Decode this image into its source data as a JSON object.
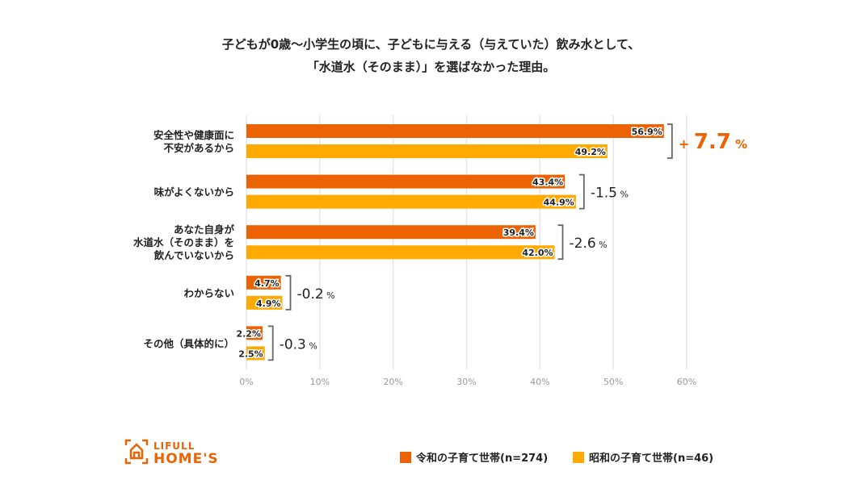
{
  "title_lines": [
    "子どもが0歳〜小学生の頃に、子どもに与える（与えていた）飲み水として、",
    "「水道水（そのまま）」を選ばなかった理由。"
  ],
  "logo": {
    "line1": "LIFULL",
    "line2": "HOME'S"
  },
  "colors": {
    "reiwa": "#EC6303",
    "showa": "#FFAA00",
    "accent": "#EC6303"
  },
  "chart_data": {
    "type": "bar",
    "orientation": "horizontal",
    "categories": [
      [
        "安全性や健康面に",
        "不安があるから"
      ],
      [
        "味がよくないから"
      ],
      [
        "あなた自身が",
        "水道水（そのまま）を",
        "飲んでいないから"
      ],
      [
        "わからない"
      ],
      [
        "その他（具体的に）"
      ]
    ],
    "series": [
      {
        "name": "令和の子育て世帯(n=274)",
        "values": [
          56.9,
          43.4,
          39.4,
          4.7,
          2.2
        ]
      },
      {
        "name": "昭和の子育て世帯(n=46)",
        "values": [
          49.2,
          44.9,
          42.0,
          4.9,
          2.5
        ]
      }
    ],
    "value_labels": [
      [
        "56.9%",
        "43.4%",
        "39.4%",
        "4.7%",
        "2.2%"
      ],
      [
        "49.2%",
        "44.9%",
        "42.0%",
        "4.9%",
        "2.5%"
      ]
    ],
    "differences": [
      {
        "sign": "+",
        "value": "7.7",
        "unit": "%",
        "highlight": true
      },
      {
        "sign": "-",
        "value": "1.5",
        "unit": "%"
      },
      {
        "sign": "-",
        "value": "2.6",
        "unit": "%"
      },
      {
        "sign": "-",
        "value": "0.2",
        "unit": "%"
      },
      {
        "sign": "-",
        "value": "0.3",
        "unit": "%"
      }
    ],
    "xlim": [
      0,
      60
    ],
    "xticks": [
      "0%",
      "10%",
      "20%",
      "30%",
      "40%",
      "50%",
      "60%"
    ],
    "grid": true,
    "legend_position": "bottom-right"
  }
}
